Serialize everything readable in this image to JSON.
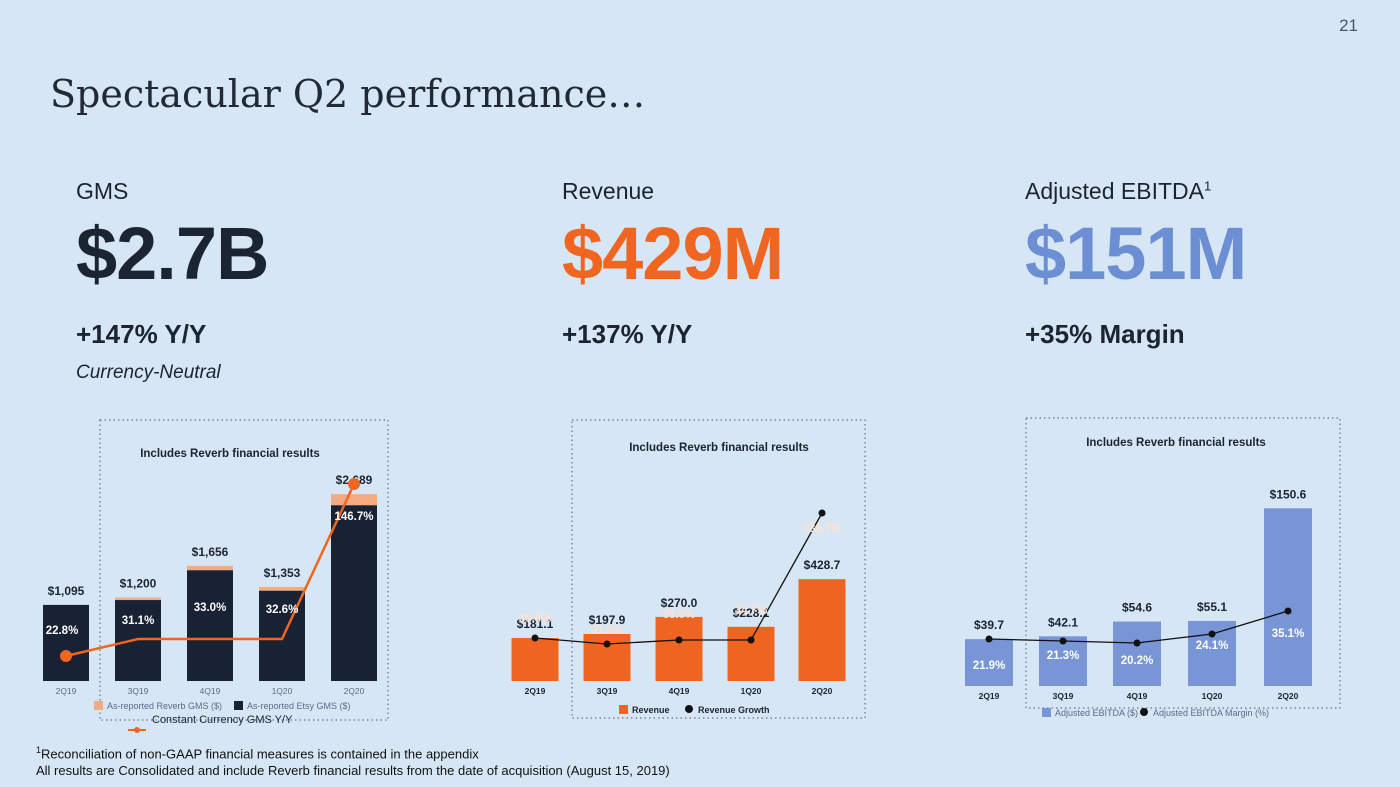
{
  "page_number": "21",
  "title": "Spectacular Q2 performance…",
  "kpis": [
    {
      "label": "GMS",
      "sup": "",
      "value": "$2.7B",
      "sub": "+147% Y/Y",
      "note": "Currency-Neutral",
      "color": "#1b2433"
    },
    {
      "label": "Revenue",
      "sup": "",
      "value": "$429M",
      "sub": "+137% Y/Y",
      "note": "",
      "color": "#f0651f"
    },
    {
      "label": "Adjusted EBITDA",
      "sup": "1",
      "value": "$151M",
      "sub": "+35% Margin",
      "note": "",
      "color": "#6c8ed2"
    }
  ],
  "colors": {
    "gms_bar": "#182233",
    "reverb": "#f4ab82",
    "line_orange": "#f0651f",
    "revenue_bar": "#ee6420",
    "ebitda_bar": "#7895d6",
    "dark_line": "#111111"
  },
  "chart_data": [
    {
      "type": "bar",
      "title": "Includes Reverb financial results",
      "categories": [
        "2Q19",
        "3Q19",
        "4Q19",
        "1Q20",
        "2Q20"
      ],
      "bar_labels": [
        "$1,095",
        "$1,200",
        "$1,656",
        "$1,353",
        "$2,689"
      ],
      "series": [
        {
          "name": "As-reported Etsy GMS ($)",
          "values": [
            1095,
            1165,
            1595,
            1300,
            2530
          ]
        },
        {
          "name": "As-reported Reverb GMS ($)",
          "values": [
            0,
            35,
            61,
            53,
            159
          ]
        },
        {
          "name": "Constant Currency GMS Y/Y",
          "values": [
            22.8,
            31.1,
            33.0,
            32.6,
            146.7
          ]
        }
      ],
      "pct_labels": [
        "22.8%",
        "31.1%",
        "33.0%",
        "32.6%",
        "146.7%"
      ],
      "ylim": [
        0,
        2700
      ]
    },
    {
      "type": "bar",
      "title": "Includes Reverb financial results",
      "categories": [
        "2Q19",
        "3Q19",
        "4Q19",
        "1Q20",
        "2Q20"
      ],
      "bar_labels": [
        "$181.1",
        "$197.9",
        "$270.0",
        "$228.1",
        "$428.7"
      ],
      "series": [
        {
          "name": "Revenue",
          "values": [
            181.1,
            197.9,
            270.0,
            228.1,
            428.7
          ]
        },
        {
          "name": "Revenue Growth",
          "values": [
            36.8,
            31.6,
            35.0,
            34.7,
            136.7
          ]
        }
      ],
      "pct_labels": [
        "36.8%",
        "31.6%",
        "35.0%",
        "34.7%",
        "136.7%"
      ],
      "ylim": [
        0,
        430
      ]
    },
    {
      "type": "bar",
      "title": "Includes Reverb financial results",
      "categories": [
        "2Q19",
        "3Q19",
        "4Q19",
        "1Q20",
        "2Q20"
      ],
      "bar_labels": [
        "$39.7",
        "$42.1",
        "$54.6",
        "$55.1",
        "$150.6"
      ],
      "series": [
        {
          "name": "Adjusted EBITDA ($)",
          "values": [
            39.7,
            42.1,
            54.6,
            55.1,
            150.6
          ]
        },
        {
          "name": "Adjusted EBITDA Margin (%)",
          "values": [
            21.9,
            21.3,
            20.2,
            24.1,
            35.1
          ]
        }
      ],
      "pct_labels": [
        "21.9%",
        "21.3%",
        "20.2%",
        "24.1%",
        "35.1%"
      ],
      "ylim": [
        0,
        151
      ]
    }
  ],
  "footnotes": {
    "line1_sup": "1",
    "line1": "Reconciliation of non-GAAP financial measures is contained in the appendix",
    "line2": "All results are Consolidated and include Reverb financial results from the date of acquisition (August 15, 2019)"
  }
}
